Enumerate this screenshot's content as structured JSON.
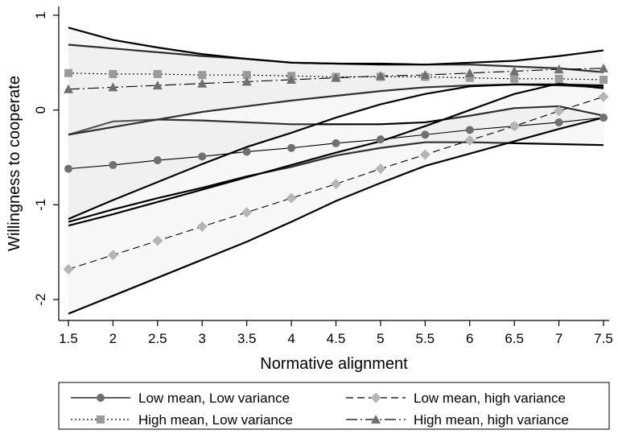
{
  "chart_data": {
    "type": "line",
    "xlabel": "Normative alignment",
    "ylabel": "Willingness to cooperate",
    "xlim": [
      1.5,
      7.5
    ],
    "ylim": [
      -2.2,
      1.1
    ],
    "x_ticks": [
      "1.5",
      "2",
      "2.5",
      "3",
      "3.5",
      "4",
      "4.5",
      "5",
      "5.5",
      "6",
      "6.5",
      "7",
      "7.5"
    ],
    "y_ticks": [
      "1",
      "0",
      "-1",
      "-2"
    ],
    "x": [
      1.5,
      2,
      2.5,
      3,
      3.5,
      4,
      4.5,
      5,
      5.5,
      6,
      6.5,
      7,
      7.5
    ],
    "grid": false,
    "legend_position": "bottom",
    "series": [
      {
        "name": "Low mean, Low variance",
        "marker": "circle",
        "line_style": "solid",
        "color": "#707070",
        "values": [
          -0.62,
          -0.58,
          -0.53,
          -0.49,
          -0.44,
          -0.4,
          -0.35,
          -0.31,
          -0.26,
          -0.21,
          -0.17,
          -0.13,
          -0.08
        ],
        "ci_upper": [
          -0.26,
          -0.12,
          -0.1,
          -0.11,
          -0.13,
          -0.15,
          -0.15,
          -0.15,
          -0.13,
          -0.06,
          0.02,
          0.04,
          -0.06
        ],
        "ci_lower": [
          -1.18,
          -1.05,
          -0.93,
          -0.82,
          -0.7,
          -0.6,
          -0.48,
          -0.4,
          -0.34,
          -0.34,
          -0.35,
          -0.36,
          -0.37
        ]
      },
      {
        "name": "High mean, Low variance",
        "marker": "square",
        "line_style": "dotted",
        "color": "#9a9a9a",
        "values": [
          0.39,
          0.38,
          0.38,
          0.37,
          0.37,
          0.36,
          0.35,
          0.35,
          0.35,
          0.34,
          0.33,
          0.33,
          0.32
        ],
        "ci_upper": [
          0.69,
          0.65,
          0.61,
          0.57,
          0.54,
          0.5,
          0.49,
          0.49,
          0.48,
          0.48,
          0.46,
          0.44,
          0.4
        ],
        "ci_lower": [
          -0.26,
          -0.18,
          -0.1,
          -0.02,
          0.04,
          0.1,
          0.15,
          0.2,
          0.24,
          0.26,
          0.27,
          0.26,
          0.24
        ]
      },
      {
        "name": "Low mean, high variance",
        "marker": "diamond",
        "line_style": "dashed",
        "color": "#b5b5b5",
        "values": [
          -1.68,
          -1.53,
          -1.38,
          -1.23,
          -1.08,
          -0.93,
          -0.78,
          -0.62,
          -0.47,
          -0.32,
          -0.17,
          -0.01,
          0.14
        ],
        "ci_upper": [
          -1.22,
          -1.1,
          -0.97,
          -0.84,
          -0.71,
          -0.58,
          -0.45,
          -0.33,
          -0.17,
          0.0,
          0.17,
          0.28,
          0.23
        ],
        "ci_lower": [
          -2.15,
          -1.96,
          -1.77,
          -1.58,
          -1.39,
          -1.18,
          -0.96,
          -0.77,
          -0.59,
          -0.46,
          -0.33,
          -0.2,
          -0.08
        ]
      },
      {
        "name": "High mean, high variance",
        "marker": "triangle",
        "line_style": "longdash-dot",
        "color": "#707070",
        "values": [
          0.22,
          0.24,
          0.26,
          0.28,
          0.3,
          0.32,
          0.34,
          0.36,
          0.37,
          0.39,
          0.41,
          0.43,
          0.44
        ],
        "ci_upper": [
          0.87,
          0.74,
          0.66,
          0.59,
          0.54,
          0.5,
          0.49,
          0.48,
          0.48,
          0.5,
          0.52,
          0.57,
          0.63
        ],
        "ci_lower": [
          -1.15,
          -0.95,
          -0.76,
          -0.57,
          -0.39,
          -0.24,
          -0.08,
          0.06,
          0.17,
          0.25,
          0.27,
          0.27,
          0.26
        ]
      }
    ]
  }
}
